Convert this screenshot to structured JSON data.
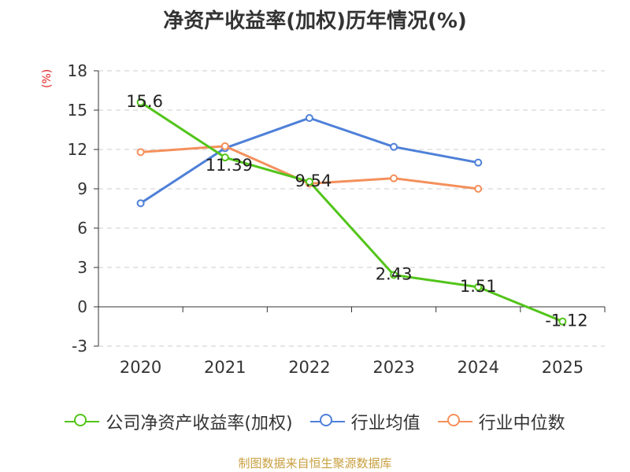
{
  "chart_data": {
    "type": "line",
    "title": "净资产收益率(加权)历年情况(%)",
    "ylabel": "(%)",
    "categories": [
      "2020",
      "2021",
      "2022",
      "2023",
      "2024",
      "2025"
    ],
    "ylim": [
      -3,
      18
    ],
    "yticks": [
      "18",
      "15",
      "12",
      "9",
      "6",
      "3",
      "0",
      "-3"
    ],
    "grid": true,
    "legend_position": "bottom",
    "series": [
      {
        "name": "公司净资产收益率(加权)",
        "color": "#52c41a",
        "values": [
          15.6,
          11.39,
          9.54,
          2.43,
          1.51,
          -1.12
        ],
        "labels": [
          "15.6",
          "11.39",
          "9.54",
          "2.43",
          "1.51",
          "-1.12"
        ]
      },
      {
        "name": "行业均值",
        "color": "#4e80d8",
        "values": [
          7.9,
          12.1,
          14.4,
          12.2,
          11.0,
          null
        ]
      },
      {
        "name": "行业中位数",
        "color": "#f4905b",
        "values": [
          11.8,
          12.25,
          9.4,
          9.8,
          9.0,
          null
        ]
      }
    ]
  },
  "source": "制图数据来自恒生聚源数据库"
}
